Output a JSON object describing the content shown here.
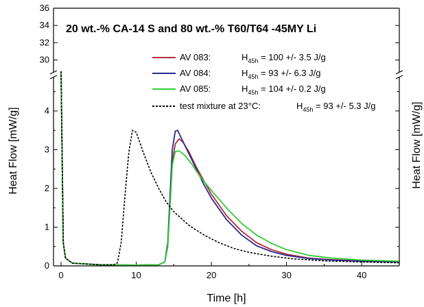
{
  "chart_data": {
    "type": "line",
    "title": "20 wt.-%  CA-14 S and 80 wt.-%  T60/T64 -45MY Li",
    "xlabel": "Time [h]",
    "ylabel": "Heat Flow [mW/g]",
    "ylabel_right": "Heat Flow [mW/g]",
    "xlim": [
      -1,
      45
    ],
    "ylim_lower": [
      0,
      4.6
    ],
    "ylim_upper": [
      29.8,
      36
    ],
    "y_axis_break": true,
    "x_ticks": [
      "0",
      "10",
      "20",
      "30",
      "40"
    ],
    "y_ticks_lower": [
      "0",
      "1",
      "2",
      "3",
      "4"
    ],
    "y_ticks_upper": [
      "30",
      "32",
      "34",
      "36"
    ],
    "grid": false,
    "legend_position": "upper-right",
    "series": [
      {
        "name": "AV 083:",
        "legend_value": "H",
        "legend_sub": "45h",
        "legend_rest": " = 100 +/- 3.5 J/g",
        "color": "#b02a3a",
        "style": "solid",
        "points": [
          [
            0,
            5.0
          ],
          [
            0.3,
            0.6
          ],
          [
            0.6,
            0.2
          ],
          [
            1.5,
            0.07
          ],
          [
            5,
            0.03
          ],
          [
            10,
            0.02
          ],
          [
            13,
            0.03
          ],
          [
            13.8,
            0.1
          ],
          [
            14.2,
            0.5
          ],
          [
            14.5,
            1.6
          ],
          [
            14.8,
            2.7
          ],
          [
            15.2,
            3.15
          ],
          [
            15.7,
            3.28
          ],
          [
            16.2,
            3.2
          ],
          [
            17,
            2.95
          ],
          [
            18,
            2.55
          ],
          [
            19,
            2.2
          ],
          [
            20,
            1.85
          ],
          [
            22,
            1.3
          ],
          [
            24,
            0.9
          ],
          [
            26,
            0.6
          ],
          [
            28,
            0.42
          ],
          [
            30,
            0.3
          ],
          [
            33,
            0.2
          ],
          [
            36,
            0.16
          ],
          [
            40,
            0.13
          ],
          [
            45,
            0.1
          ]
        ]
      },
      {
        "name": "AV 084:",
        "legend_value": "H",
        "legend_sub": "45h",
        "legend_rest": " = 93 +/- 6.3 J/g",
        "color": "#2a2a8c",
        "style": "solid",
        "points": [
          [
            0,
            5.0
          ],
          [
            0.3,
            0.6
          ],
          [
            0.6,
            0.2
          ],
          [
            1.5,
            0.07
          ],
          [
            5,
            0.03
          ],
          [
            10,
            0.02
          ],
          [
            13,
            0.03
          ],
          [
            13.8,
            0.1
          ],
          [
            14.2,
            0.6
          ],
          [
            14.5,
            1.8
          ],
          [
            14.8,
            3.0
          ],
          [
            15.2,
            3.48
          ],
          [
            15.5,
            3.5
          ],
          [
            16,
            3.3
          ],
          [
            17,
            2.9
          ],
          [
            18,
            2.5
          ],
          [
            19,
            2.1
          ],
          [
            20,
            1.75
          ],
          [
            22,
            1.2
          ],
          [
            24,
            0.8
          ],
          [
            26,
            0.52
          ],
          [
            28,
            0.37
          ],
          [
            30,
            0.27
          ],
          [
            33,
            0.19
          ],
          [
            36,
            0.15
          ],
          [
            40,
            0.12
          ],
          [
            45,
            0.1
          ]
        ]
      },
      {
        "name": "AV 085:",
        "legend_value": "H",
        "legend_sub": "45h",
        "legend_rest": " = 104 +/- 0.2 J/g",
        "color": "#33cc33",
        "style": "solid",
        "points": [
          [
            0,
            5.0
          ],
          [
            0.3,
            0.6
          ],
          [
            0.6,
            0.2
          ],
          [
            1.5,
            0.07
          ],
          [
            5,
            0.03
          ],
          [
            10,
            0.02
          ],
          [
            13,
            0.03
          ],
          [
            13.8,
            0.1
          ],
          [
            14.2,
            0.5
          ],
          [
            14.5,
            1.5
          ],
          [
            14.8,
            2.6
          ],
          [
            15.2,
            2.95
          ],
          [
            15.7,
            2.97
          ],
          [
            16.5,
            2.85
          ],
          [
            17.5,
            2.6
          ],
          [
            18.5,
            2.3
          ],
          [
            20,
            1.95
          ],
          [
            22,
            1.5
          ],
          [
            24,
            1.1
          ],
          [
            26,
            0.8
          ],
          [
            28,
            0.58
          ],
          [
            30,
            0.42
          ],
          [
            33,
            0.27
          ],
          [
            36,
            0.2
          ],
          [
            40,
            0.15
          ],
          [
            45,
            0.12
          ]
        ]
      },
      {
        "name": "test mixture at 23°C:",
        "legend_value": "H",
        "legend_sub": "45h",
        "legend_rest": " = 93 +/- 5.3 J/g",
        "color": "#000000",
        "style": "dotted",
        "points": [
          [
            0,
            5.0
          ],
          [
            0.3,
            0.6
          ],
          [
            0.6,
            0.2
          ],
          [
            1.5,
            0.07
          ],
          [
            5,
            0.03
          ],
          [
            7,
            0.03
          ],
          [
            7.5,
            0.08
          ],
          [
            8,
            0.6
          ],
          [
            8.5,
            1.8
          ],
          [
            9,
            2.9
          ],
          [
            9.5,
            3.5
          ],
          [
            10,
            3.45
          ],
          [
            11,
            2.9
          ],
          [
            12,
            2.4
          ],
          [
            13,
            2.0
          ],
          [
            14,
            1.65
          ],
          [
            15,
            1.4
          ],
          [
            17,
            1.05
          ],
          [
            19,
            0.8
          ],
          [
            21,
            0.6
          ],
          [
            23,
            0.45
          ],
          [
            25,
            0.35
          ],
          [
            28,
            0.25
          ],
          [
            31,
            0.18
          ],
          [
            35,
            0.13
          ],
          [
            40,
            0.1
          ],
          [
            45,
            0.08
          ]
        ]
      }
    ]
  }
}
